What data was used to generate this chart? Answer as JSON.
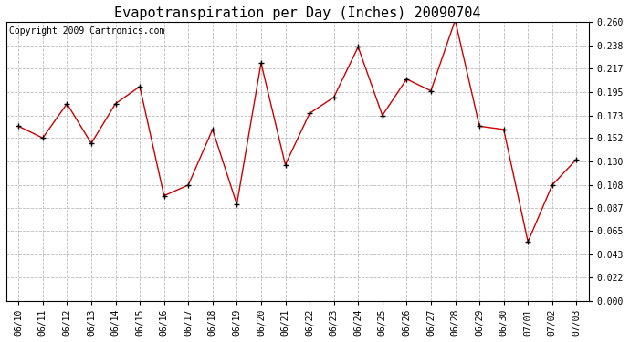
{
  "title": "Evapotranspiration per Day (Inches) 20090704",
  "copyright": "Copyright 2009 Cartronics.com",
  "x_labels": [
    "06/10",
    "06/11",
    "06/12",
    "06/13",
    "06/14",
    "06/15",
    "06/16",
    "06/17",
    "06/18",
    "06/19",
    "06/20",
    "06/21",
    "06/22",
    "06/23",
    "06/24",
    "06/25",
    "06/26",
    "06/27",
    "06/28",
    "06/29",
    "06/30",
    "07/01",
    "07/02",
    "07/03"
  ],
  "y_values": [
    0.163,
    0.152,
    0.184,
    0.147,
    0.184,
    0.2,
    0.098,
    0.108,
    0.16,
    0.09,
    0.222,
    0.127,
    0.175,
    0.19,
    0.237,
    0.173,
    0.207,
    0.196,
    0.262,
    0.163,
    0.16,
    0.055,
    0.108,
    0.132
  ],
  "line_color": "#cc0000",
  "marker": "+",
  "marker_size": 5,
  "marker_color": "#000000",
  "bg_color": "#ffffff",
  "plot_bg_color": "#ffffff",
  "grid_color": "#bbbbbb",
  "grid_style": "--",
  "y_min": 0.0,
  "y_max": 0.26,
  "y_ticks": [
    0.0,
    0.022,
    0.043,
    0.065,
    0.087,
    0.108,
    0.13,
    0.152,
    0.173,
    0.195,
    0.217,
    0.238,
    0.26
  ],
  "title_fontsize": 11,
  "tick_fontsize": 7,
  "copyright_fontsize": 7
}
